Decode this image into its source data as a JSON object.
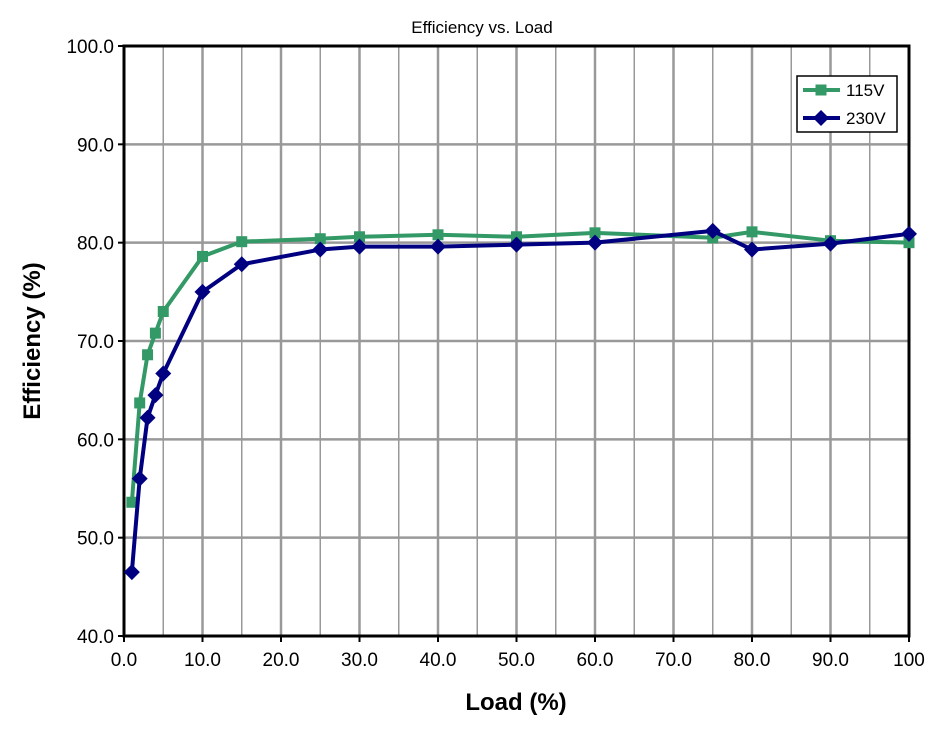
{
  "chart_data": {
    "type": "line",
    "title": "Efficiency vs. Load",
    "xlabel": "Load (%)",
    "ylabel": "Efficiency (%)",
    "xlim": [
      0,
      100
    ],
    "ylim": [
      40,
      100
    ],
    "grid": true,
    "legend": "top-right",
    "x_ticks": [
      "0.0",
      "10.0",
      "20.0",
      "30.0",
      "40.0",
      "50.0",
      "60.0",
      "70.0",
      "80.0",
      "90.0",
      "100"
    ],
    "y_ticks": [
      "40.0",
      "50.0",
      "60.0",
      "70.0",
      "80.0",
      "90.0",
      "100.0"
    ],
    "series": [
      {
        "name": "115V",
        "color": "#339966",
        "marker": "square",
        "x": [
          1,
          2,
          3,
          4,
          5,
          10,
          15,
          25,
          30,
          40,
          50,
          60,
          75,
          80,
          90,
          100
        ],
        "values": [
          53.6,
          63.7,
          68.6,
          70.8,
          73.0,
          78.6,
          80.1,
          80.4,
          80.6,
          80.8,
          80.6,
          81.0,
          80.5,
          81.1,
          80.2,
          80.0
        ]
      },
      {
        "name": "230V",
        "color": "#000080",
        "marker": "diamond",
        "x": [
          1,
          2,
          3,
          4,
          5,
          10,
          15,
          25,
          30,
          40,
          50,
          60,
          75,
          80,
          90,
          100
        ],
        "values": [
          46.5,
          56.0,
          62.2,
          64.5,
          66.7,
          75.0,
          77.8,
          79.3,
          79.6,
          79.6,
          79.8,
          80.0,
          81.2,
          79.3,
          79.9,
          80.9
        ]
      }
    ]
  }
}
